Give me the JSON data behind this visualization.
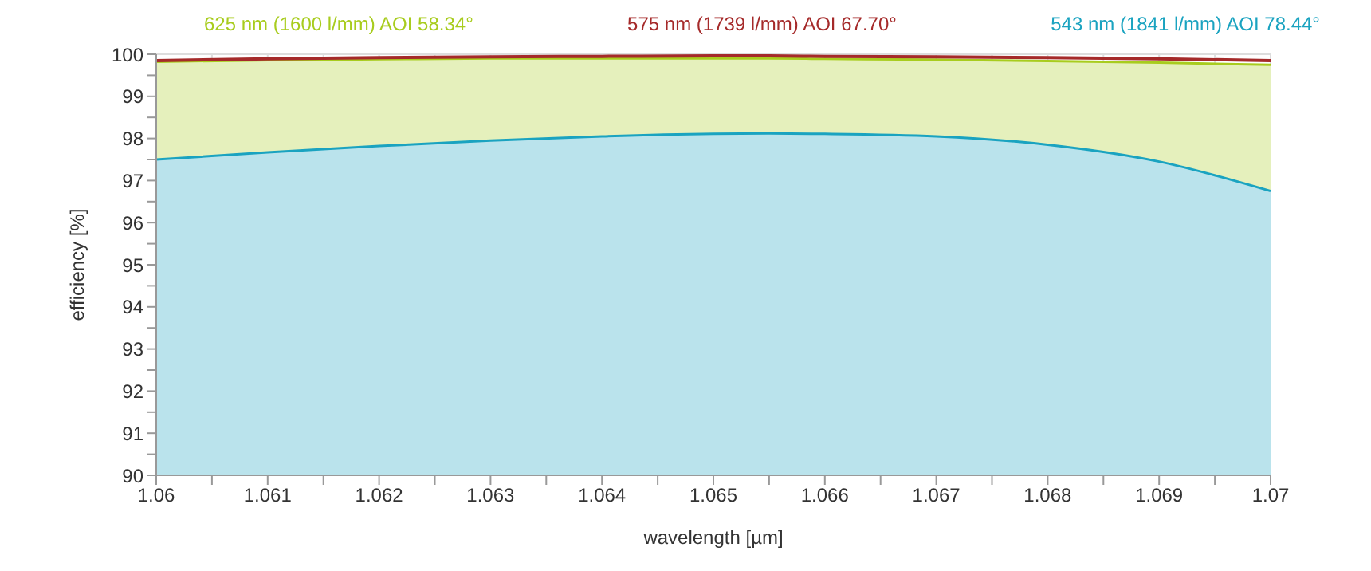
{
  "chart_data": {
    "type": "area",
    "xlabel": "wavelength [µm]",
    "ylabel": "efficiency [%]",
    "x": [
      1.06,
      1.061,
      1.062,
      1.063,
      1.064,
      1.065,
      1.0655,
      1.066,
      1.067,
      1.068,
      1.069,
      1.07
    ],
    "series": [
      {
        "name": "625 nm (1600 l/mm) AOI 58.34°",
        "color": "#a8cc1e",
        "values": [
          99.82,
          99.86,
          99.88,
          99.9,
          99.9,
          99.9,
          99.9,
          99.89,
          99.87,
          99.84,
          99.8,
          99.75
        ]
      },
      {
        "name": "575 nm (1739 l/mm) AOI 67.70°",
        "type": "line",
        "color": "#a52a2a",
        "values": [
          99.85,
          99.89,
          99.92,
          99.94,
          99.95,
          99.96,
          99.96,
          99.95,
          99.94,
          99.92,
          99.89,
          99.85
        ]
      },
      {
        "name": "543 nm (1841 l/mm) AOI 78.44°",
        "color": "#1aa3c0",
        "values": [
          97.5,
          97.67,
          97.82,
          97.95,
          98.05,
          98.11,
          98.12,
          98.11,
          98.05,
          97.85,
          97.45,
          96.75
        ]
      }
    ],
    "xlim": [
      1.06,
      1.07
    ],
    "xticks": [
      1.06,
      {
        "value": 1.0605,
        "label": null
      },
      1.061,
      {
        "value": 1.0615,
        "label": null
      },
      1.062,
      {
        "value": 1.0625,
        "label": null
      },
      1.063,
      {
        "value": 1.0635,
        "label": null
      },
      1.064,
      {
        "value": 1.0645,
        "label": null
      },
      1.065,
      {
        "value": 1.0655,
        "label": null
      },
      1.066,
      {
        "value": 1.0665,
        "label": null
      },
      1.067,
      {
        "value": 1.0675,
        "label": null
      },
      1.068,
      {
        "value": 1.0685,
        "label": null
      },
      1.069,
      {
        "value": 1.0695,
        "label": null
      },
      1.07
    ],
    "ylim": [
      90,
      100
    ],
    "yticks": [
      90,
      {
        "value": 90.5,
        "label": null
      },
      91,
      {
        "value": 91.5,
        "label": null
      },
      92,
      {
        "value": 92.5,
        "label": null
      },
      93,
      {
        "value": 93.5,
        "label": null
      },
      94,
      {
        "value": 94.5,
        "label": null
      },
      95,
      {
        "value": 95.5,
        "label": null
      },
      96,
      {
        "value": 96.5,
        "label": null
      },
      97,
      {
        "value": 97.5,
        "label": null
      },
      98,
      {
        "value": 98.5,
        "label": null
      },
      99,
      {
        "value": 99.5,
        "label": null
      },
      100
    ],
    "grid": true,
    "legend": "top"
  }
}
